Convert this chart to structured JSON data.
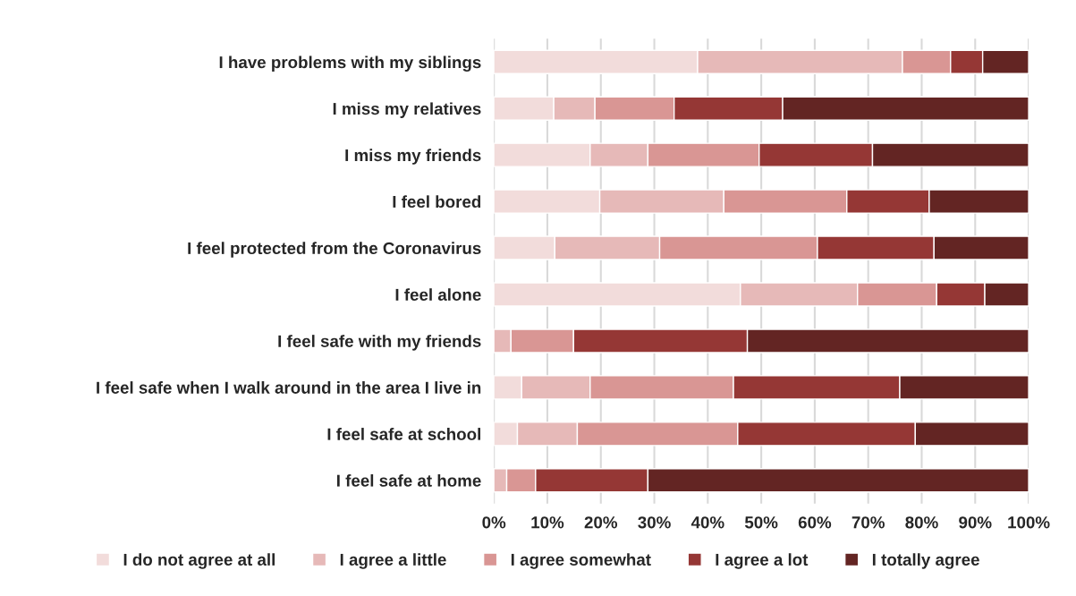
{
  "chart_data": {
    "type": "bar",
    "orientation": "horizontal",
    "stacked": true,
    "categories": [
      "I have problems with my siblings",
      "I miss my relatives",
      "I miss my friends",
      "I feel bored",
      "I feel protected from the Coronavirus",
      "I feel alone",
      "I feel safe with my friends",
      "I feel safe when I walk around in the area I live in",
      "I feel safe at school",
      "I feel safe at home"
    ],
    "series": [
      {
        "name": "I do not agree at all",
        "color": "#f2dcdb",
        "values": [
          38.1,
          11.2,
          18.0,
          19.8,
          11.4,
          46.1,
          0,
          5.2,
          4.4,
          0
        ]
      },
      {
        "name": "I agree a little",
        "color": "#e6b9b8",
        "values": [
          38.3,
          7.7,
          10.8,
          23.2,
          19.6,
          21.9,
          3.2,
          12.8,
          11.2,
          2.4
        ]
      },
      {
        "name": "I agree somewhat",
        "color": "#d99694",
        "values": [
          9.0,
          14.8,
          20.8,
          23.0,
          29.5,
          14.8,
          11.7,
          26.8,
          30.0,
          5.4
        ]
      },
      {
        "name": "I agree a lot",
        "color": "#953735",
        "values": [
          6.0,
          20.3,
          21.2,
          15.4,
          21.8,
          9.0,
          32.5,
          31.1,
          33.2,
          21.0
        ]
      },
      {
        "name": "I totally agree",
        "color": "#632523",
        "values": [
          8.6,
          46.0,
          29.2,
          18.6,
          17.7,
          8.2,
          52.6,
          24.1,
          21.2,
          71.2
        ]
      }
    ],
    "xlim": [
      0,
      100
    ],
    "xticks": [
      {
        "value": 0,
        "label": "0%"
      },
      {
        "value": 10,
        "label": "10%"
      },
      {
        "value": 20,
        "label": "20%"
      },
      {
        "value": 30,
        "label": "30%"
      },
      {
        "value": 40,
        "label": "40%"
      },
      {
        "value": 50,
        "label": "50%"
      },
      {
        "value": 60,
        "label": "60%"
      },
      {
        "value": 70,
        "label": "70%"
      },
      {
        "value": 80,
        "label": "80%"
      },
      {
        "value": 90,
        "label": "90%"
      },
      {
        "value": 100,
        "label": "100%"
      }
    ],
    "grid": "x",
    "legend": "bottom"
  }
}
